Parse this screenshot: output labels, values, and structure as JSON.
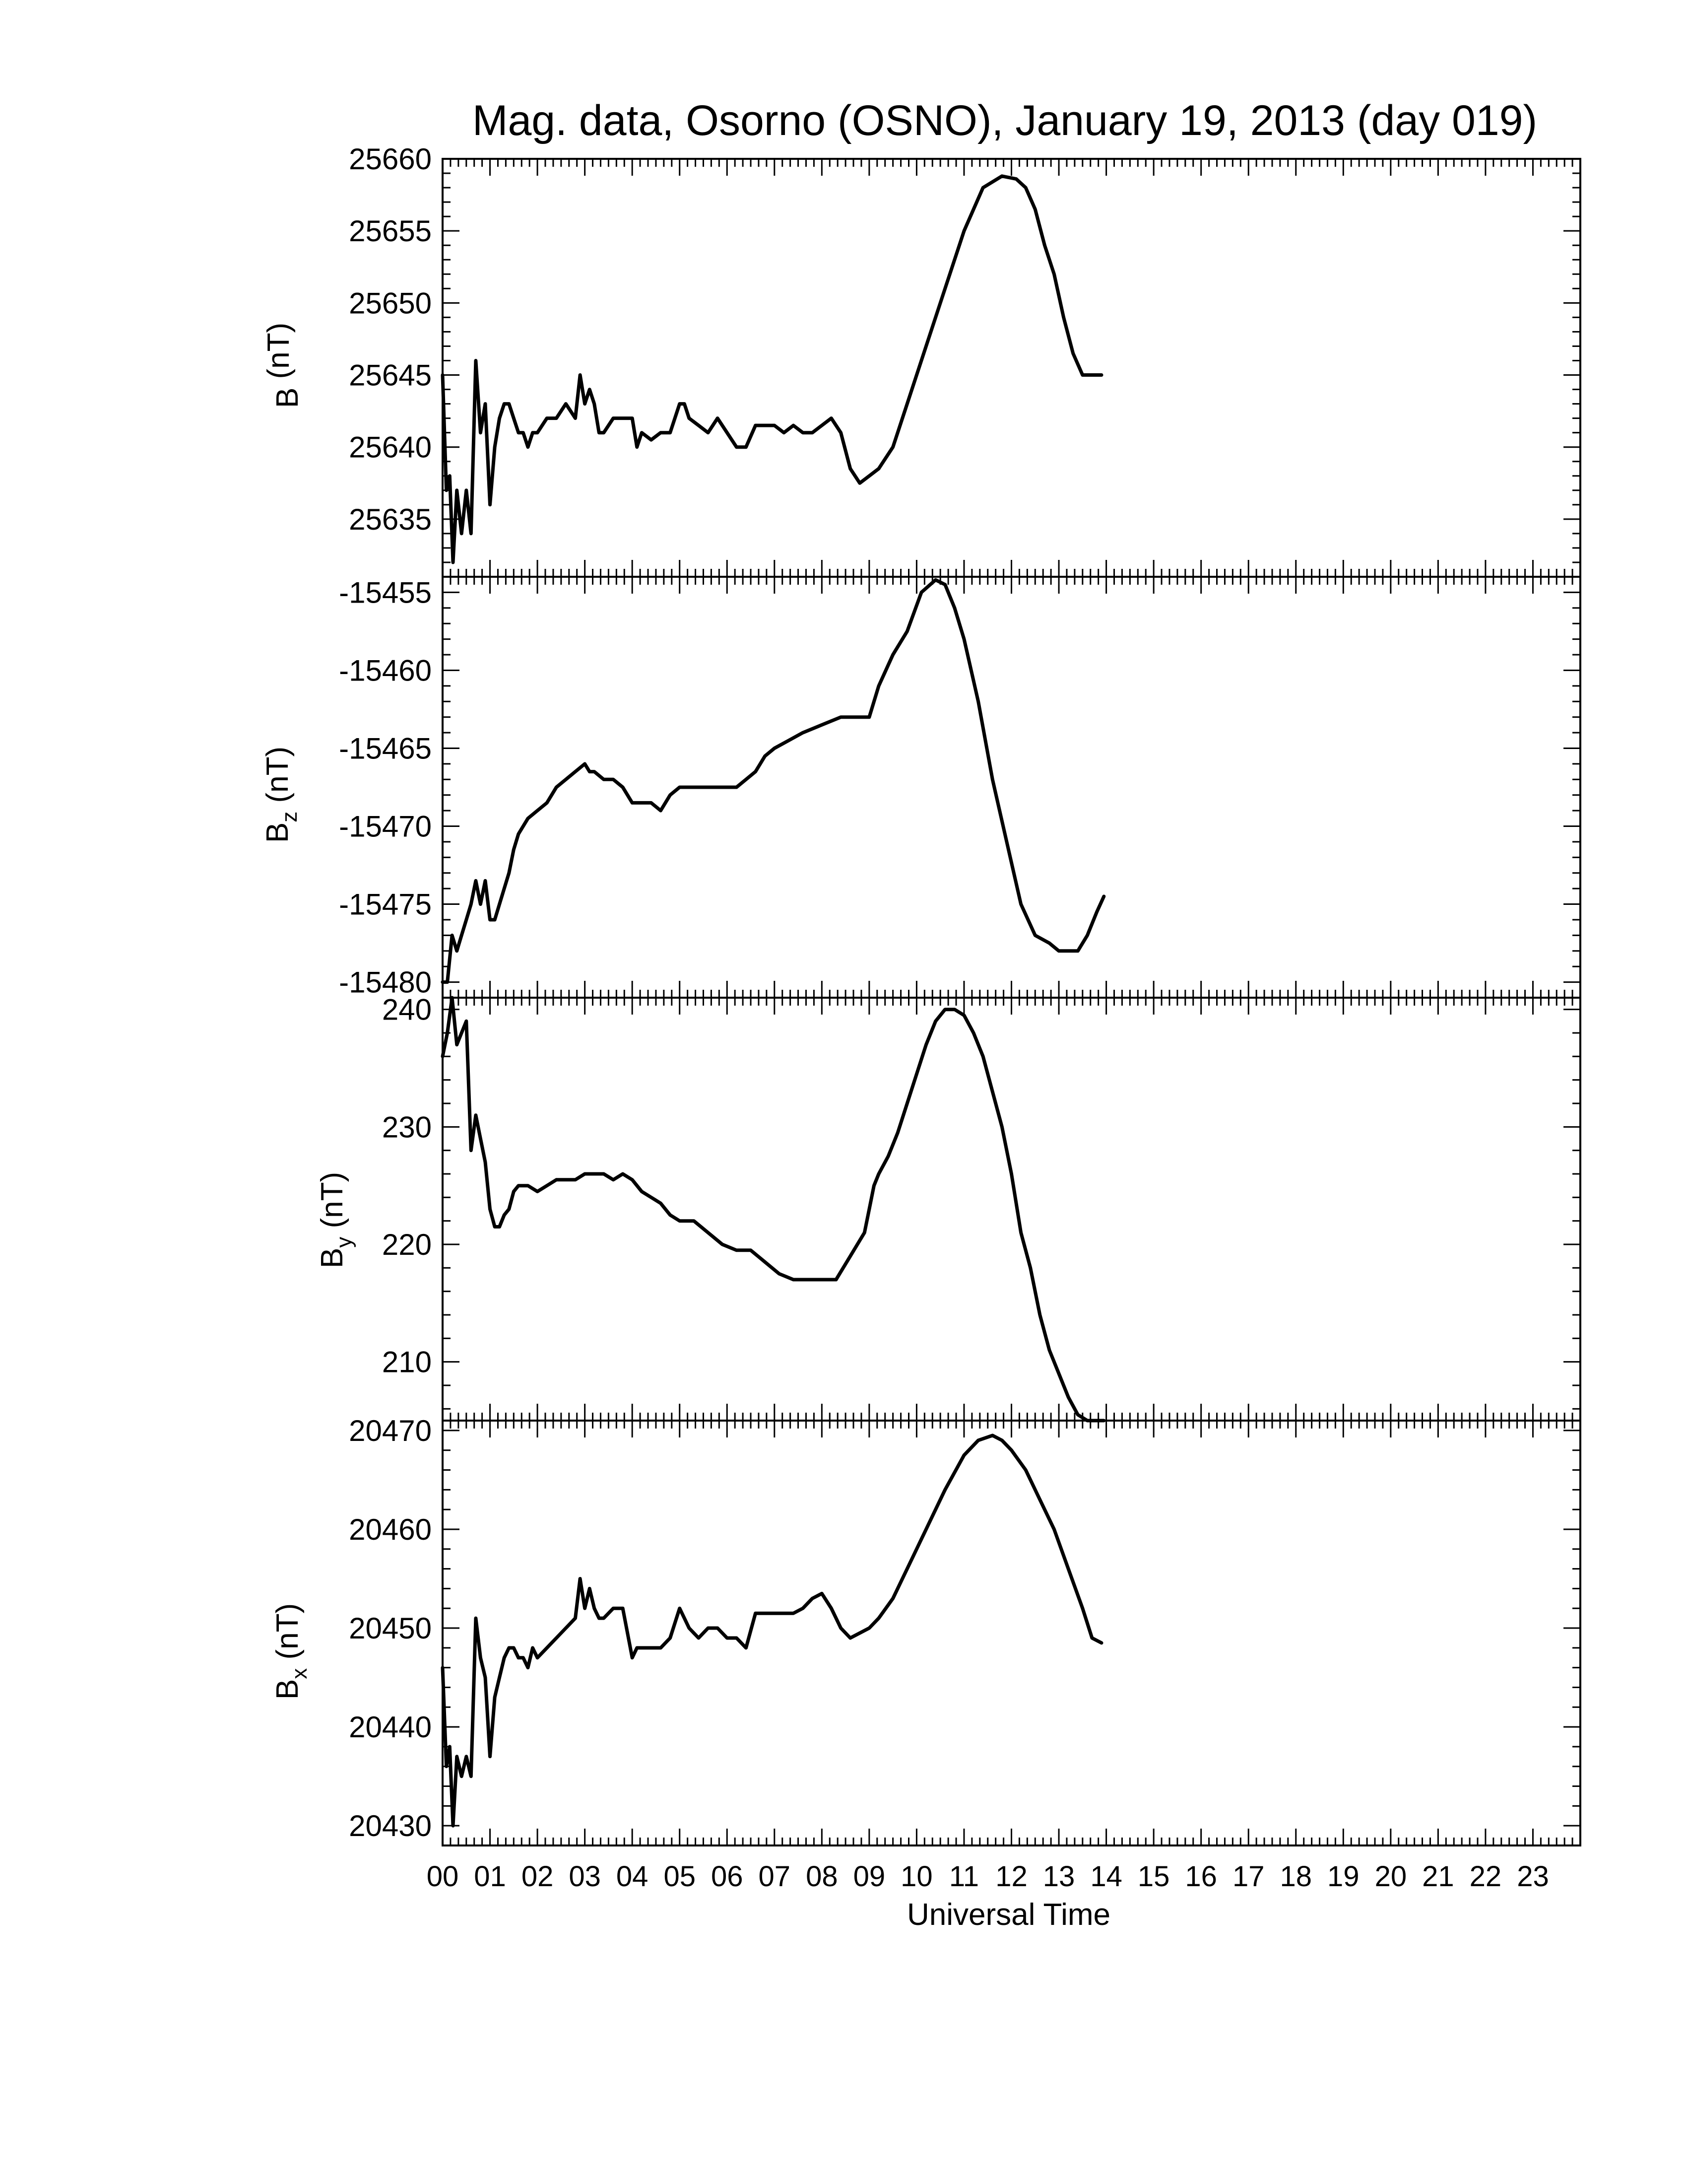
{
  "title": "Mag. data, Osorno (OSNO), January 19, 2013 (day 019)",
  "xlabel": "Universal Time",
  "x_tick_labels": [
    "00",
    "01",
    "02",
    "03",
    "04",
    "05",
    "06",
    "07",
    "08",
    "09",
    "10",
    "11",
    "12",
    "13",
    "14",
    "15",
    "16",
    "17",
    "18",
    "19",
    "20",
    "21",
    "22",
    "23"
  ],
  "chart_data": [
    {
      "type": "line",
      "ylabel": "B (nT)",
      "ylabel_main": "B",
      "ylabel_sub": "",
      "ylabel_unit": " (nT)",
      "ylim": [
        25631,
        25660
      ],
      "yticks": [
        25635,
        25640,
        25645,
        25650,
        25655,
        25660
      ],
      "series": [
        {
          "x": [
            0,
            0.08,
            0.15,
            0.22,
            0.3,
            0.4,
            0.5,
            0.6,
            0.7,
            0.8,
            0.9,
            1.0,
            1.1,
            1.2,
            1.3,
            1.4,
            1.5,
            1.6,
            1.7,
            1.8,
            1.9,
            2.0,
            2.2,
            2.4,
            2.6,
            2.8,
            2.9,
            3.0,
            3.1,
            3.2,
            3.3,
            3.4,
            3.6,
            3.8,
            4.0,
            4.1,
            4.2,
            4.4,
            4.6,
            4.8,
            5.0,
            5.1,
            5.2,
            5.4,
            5.6,
            5.8,
            6.0,
            6.2,
            6.4,
            6.6,
            6.8,
            7.0,
            7.2,
            7.4,
            7.6,
            7.8,
            8.0,
            8.2,
            8.4,
            8.6,
            8.8,
            9.0,
            9.2,
            9.5,
            9.8,
            10.2,
            10.6,
            11.0,
            11.4,
            11.8,
            12.1,
            12.3,
            12.5,
            12.7,
            12.9,
            13.1,
            13.3,
            13.5,
            13.7,
            13.9
          ],
          "y": [
            25645,
            25637,
            25638,
            25632,
            25637,
            25634,
            25637,
            25634,
            25646,
            25641,
            25643,
            25636,
            25640,
            25642,
            25643,
            25643,
            25642,
            25641,
            25641,
            25640,
            25641,
            25641,
            25642,
            25642,
            25643,
            25642,
            25645,
            25643,
            25644,
            25643,
            25641,
            25641,
            25642,
            25642,
            25642,
            25640,
            25641,
            25640.5,
            25641,
            25641,
            25643,
            25643,
            25642,
            25641.5,
            25641,
            25642,
            25641,
            25640,
            25640,
            25641.5,
            25641.5,
            25641.5,
            25641,
            25641.5,
            25641,
            25641,
            25641.5,
            25642,
            25641,
            25638.5,
            25637.5,
            25638,
            25638.5,
            25640,
            25643,
            25647,
            25651,
            25655,
            25658,
            25658.8,
            25658.6,
            25658,
            25656.5,
            25654,
            25652,
            25649,
            25646.5,
            25645,
            25645,
            25645
          ]
        }
      ]
    },
    {
      "type": "line",
      "ylabel": "Bz (nT)",
      "ylabel_main": "B",
      "ylabel_sub": "z",
      "ylabel_unit": " (nT)",
      "ylim": [
        -15481,
        -15454
      ],
      "yticks": [
        -15480,
        -15475,
        -15470,
        -15465,
        -15460,
        -15455
      ],
      "series": [
        {
          "x": [
            0,
            0.1,
            0.2,
            0.3,
            0.4,
            0.5,
            0.6,
            0.7,
            0.8,
            0.9,
            1.0,
            1.1,
            1.2,
            1.3,
            1.4,
            1.5,
            1.6,
            1.8,
            2.0,
            2.2,
            2.4,
            2.6,
            2.8,
            3.0,
            3.1,
            3.2,
            3.4,
            3.6,
            3.8,
            4.0,
            4.2,
            4.4,
            4.6,
            4.8,
            5.0,
            5.2,
            5.4,
            5.6,
            5.8,
            6.0,
            6.2,
            6.4,
            6.6,
            6.8,
            7.0,
            7.3,
            7.6,
            8.0,
            8.4,
            8.8,
            9.0,
            9.2,
            9.5,
            9.8,
            10.1,
            10.4,
            10.6,
            10.8,
            11.0,
            11.3,
            11.6,
            11.9,
            12.2,
            12.5,
            12.8,
            13.0,
            13.2,
            13.4,
            13.6,
            13.8,
            13.95
          ],
          "y": [
            -15480,
            -15480,
            -15477,
            -15478,
            -15477,
            -15476,
            -15475,
            -15473.5,
            -15475,
            -15473.5,
            -15476,
            -15476,
            -15475,
            -15474,
            -15473,
            -15471.5,
            -15470.5,
            -15469.5,
            -15469,
            -15468.5,
            -15467.5,
            -15467,
            -15466.5,
            -15466,
            -15466.5,
            -15466.5,
            -15467,
            -15467,
            -15467.5,
            -15468.5,
            -15468.5,
            -15468.5,
            -15469,
            -15468,
            -15467.5,
            -15467.5,
            -15467.5,
            -15467.5,
            -15467.5,
            -15467.5,
            -15467.5,
            -15467,
            -15466.5,
            -15465.5,
            -15465,
            -15464.5,
            -15464,
            -15463.5,
            -15463,
            -15463,
            -15463,
            -15461,
            -15459,
            -15457.5,
            -15455,
            -15454.2,
            -15454.5,
            -15456,
            -15458,
            -15462,
            -15467,
            -15471,
            -15475,
            -15477,
            -15477.5,
            -15478,
            -15478,
            -15478,
            -15477,
            -15475.5,
            -15474.5
          ]
        }
      ]
    },
    {
      "type": "line",
      "ylabel": "By (nT)",
      "ylabel_main": "B",
      "ylabel_sub": "y",
      "ylabel_unit": " (nT)",
      "ylim": [
        205,
        241
      ],
      "yticks": [
        210,
        220,
        230,
        240
      ],
      "series": [
        {
          "x": [
            0,
            0.1,
            0.2,
            0.3,
            0.4,
            0.5,
            0.6,
            0.7,
            0.8,
            0.9,
            1.0,
            1.1,
            1.2,
            1.3,
            1.4,
            1.5,
            1.6,
            1.8,
            2.0,
            2.2,
            2.4,
            2.6,
            2.8,
            3.0,
            3.2,
            3.4,
            3.6,
            3.8,
            4.0,
            4.2,
            4.4,
            4.6,
            4.8,
            5.0,
            5.3,
            5.6,
            5.9,
            6.2,
            6.5,
            6.8,
            7.1,
            7.4,
            7.7,
            8.0,
            8.3,
            8.6,
            8.9,
            9.0,
            9.1,
            9.2,
            9.4,
            9.6,
            9.8,
            10.0,
            10.2,
            10.4,
            10.6,
            10.8,
            11.0,
            11.2,
            11.4,
            11.6,
            11.8,
            12.0,
            12.2,
            12.4,
            12.6,
            12.8,
            13.0,
            13.2,
            13.4,
            13.6,
            13.8,
            13.95
          ],
          "y": [
            236,
            238,
            241,
            237,
            238,
            239,
            228,
            231,
            229,
            227,
            223,
            221.5,
            221.5,
            222.5,
            223,
            224.5,
            225,
            225,
            224.5,
            225,
            225.5,
            225.5,
            225.5,
            226,
            226,
            226,
            225.5,
            226,
            225.5,
            224.5,
            224,
            223.5,
            222.5,
            222,
            222,
            221,
            220,
            219.5,
            219.5,
            218.5,
            217.5,
            217,
            217,
            217,
            217,
            219,
            221,
            223,
            225,
            226,
            227.5,
            229.5,
            232,
            234.5,
            237,
            239,
            240,
            240,
            239.5,
            238,
            236,
            233,
            230,
            226,
            221,
            218,
            214,
            211,
            209,
            207,
            205.5,
            205,
            205,
            205
          ]
        }
      ]
    },
    {
      "type": "line",
      "ylabel": "Bx (nT)",
      "ylabel_main": "B",
      "ylabel_sub": "x",
      "ylabel_unit": " (nT)",
      "ylim": [
        20428,
        20471
      ],
      "yticks": [
        20430,
        20440,
        20450,
        20460,
        20470
      ],
      "series": [
        {
          "x": [
            0,
            0.08,
            0.15,
            0.22,
            0.3,
            0.4,
            0.5,
            0.6,
            0.7,
            0.8,
            0.9,
            1.0,
            1.1,
            1.2,
            1.3,
            1.4,
            1.5,
            1.6,
            1.7,
            1.8,
            1.9,
            2.0,
            2.2,
            2.4,
            2.6,
            2.8,
            2.9,
            3.0,
            3.1,
            3.2,
            3.3,
            3.4,
            3.6,
            3.8,
            4.0,
            4.1,
            4.2,
            4.4,
            4.6,
            4.8,
            5.0,
            5.1,
            5.2,
            5.4,
            5.6,
            5.8,
            6.0,
            6.2,
            6.4,
            6.6,
            6.8,
            7.0,
            7.2,
            7.4,
            7.6,
            7.8,
            8.0,
            8.2,
            8.4,
            8.6,
            8.8,
            9.0,
            9.2,
            9.5,
            9.8,
            10.2,
            10.6,
            11.0,
            11.3,
            11.6,
            11.8,
            12.0,
            12.3,
            12.6,
            12.9,
            13.2,
            13.5,
            13.7,
            13.9
          ],
          "y": [
            20446,
            20436,
            20438,
            20430,
            20437,
            20435,
            20437,
            20435,
            20451,
            20447,
            20445,
            20437,
            20443,
            20445,
            20447,
            20448,
            20448,
            20447,
            20447,
            20446,
            20448,
            20447,
            20448,
            20449,
            20450,
            20451,
            20455,
            20452,
            20454,
            20452,
            20451,
            20451,
            20452,
            20452,
            20447,
            20448,
            20448,
            20448,
            20448,
            20449,
            20452,
            20451,
            20450,
            20449,
            20450,
            20450,
            20449,
            20449,
            20448,
            20451.5,
            20451.5,
            20451.5,
            20451.5,
            20451.5,
            20452,
            20453,
            20453.5,
            20452,
            20450,
            20449,
            20449.5,
            20450,
            20451,
            20453,
            20456,
            20460,
            20464,
            20467.5,
            20469,
            20469.5,
            20469,
            20468,
            20466,
            20463,
            20460,
            20456,
            20452,
            20449,
            20448.5
          ]
        }
      ]
    }
  ]
}
